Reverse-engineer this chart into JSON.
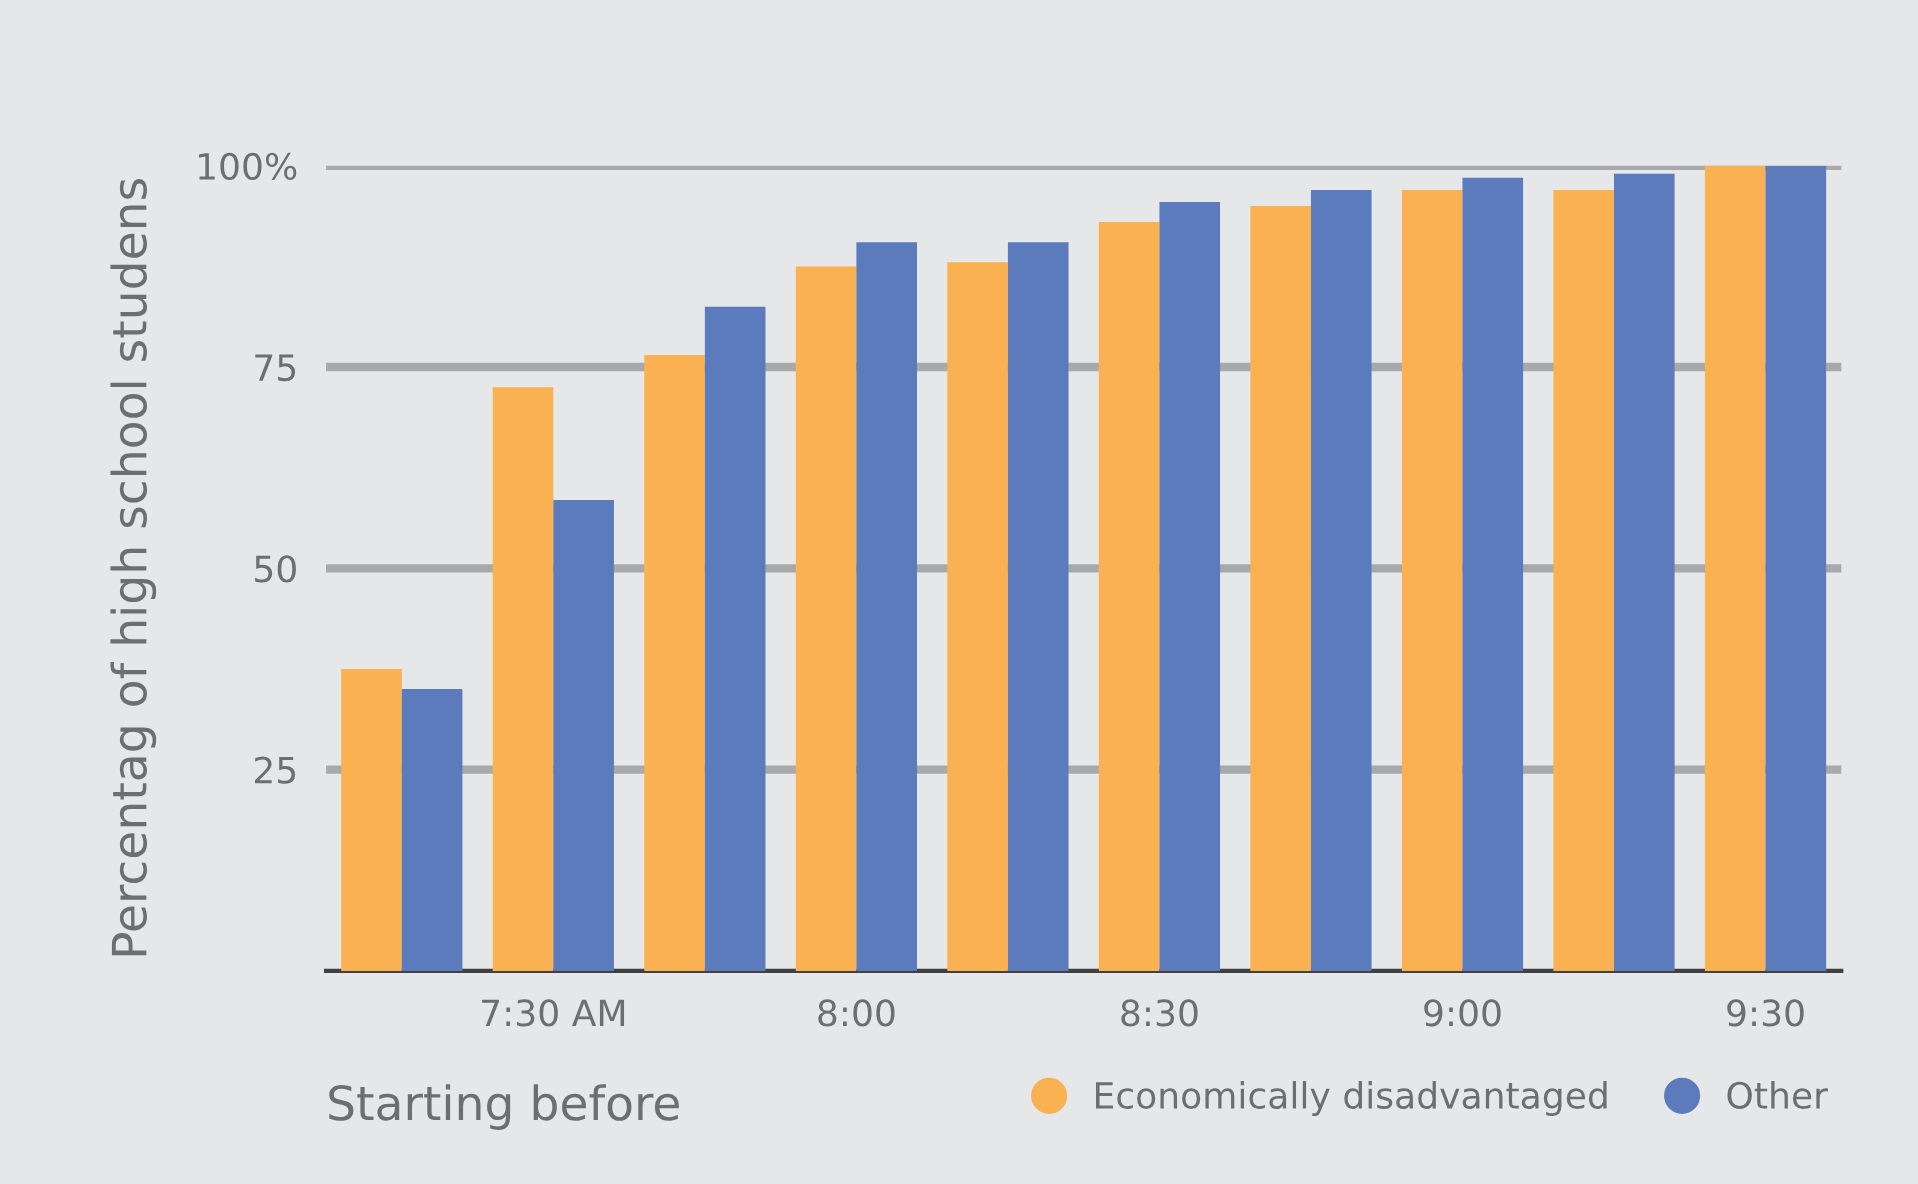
{
  "chart_data": {
    "type": "bar",
    "xlabel": "Starting before",
    "ylabel": "Percentag of high school studens",
    "categories": [
      null,
      "7:30 AM",
      null,
      "8:00",
      null,
      "8:30",
      null,
      "9:00",
      null,
      "9:30"
    ],
    "series": [
      {
        "name": "Economically disadvantaged",
        "color": "#f9b151",
        "values": [
          37.5,
          72.5,
          76.5,
          87.5,
          88,
          93,
          95,
          97,
          97,
          100
        ]
      },
      {
        "name": "Other",
        "color": "#5b7bbd",
        "values": [
          35,
          58.5,
          82.5,
          90.5,
          90.5,
          95.5,
          97,
          98.5,
          99,
          100
        ]
      }
    ],
    "ylim": [
      0,
      100
    ],
    "yticks": [
      25,
      50,
      75,
      {
        "value": 100,
        "label": "100%"
      }
    ],
    "grid": "y",
    "legend": "bottom right"
  }
}
